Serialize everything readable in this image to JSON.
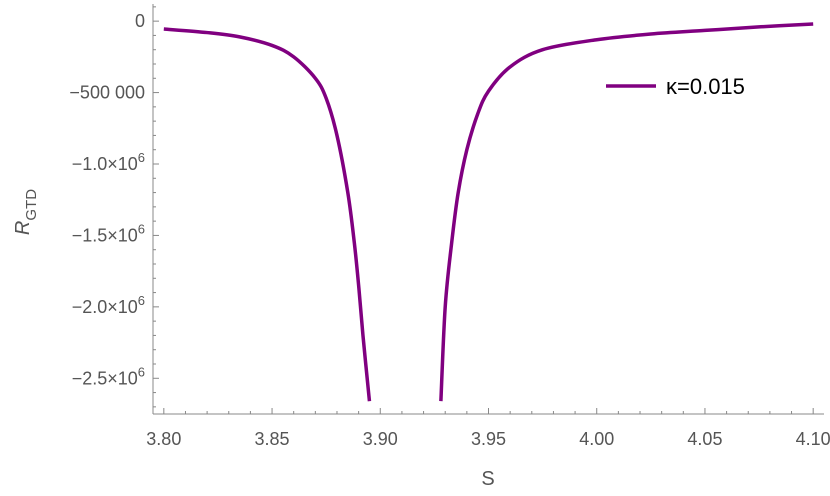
{
  "chart_data": {
    "type": "line",
    "title": "",
    "xlabel": "S",
    "ylabel": "R",
    "ylabel_sub": "GTD",
    "xlim": [
      3.795,
      4.105
    ],
    "ylim": [
      -2750000.0,
      120000
    ],
    "x_ticks": [
      {
        "value": 3.8,
        "label": "3.80"
      },
      {
        "value": 3.85,
        "label": "3.85"
      },
      {
        "value": 3.9,
        "label": "3.90"
      },
      {
        "value": 3.95,
        "label": "3.95"
      },
      {
        "value": 4.0,
        "label": "4.00"
      },
      {
        "value": 4.05,
        "label": "4.05"
      },
      {
        "value": 4.1,
        "label": "4.10"
      }
    ],
    "y_ticks": [
      {
        "value": 0,
        "label": "0",
        "exp": ""
      },
      {
        "value": -500000,
        "label": "−500 000",
        "exp": ""
      },
      {
        "value": -1000000,
        "label": "−1.0×10",
        "exp": "6"
      },
      {
        "value": -1500000,
        "label": "−1.5×10",
        "exp": "6"
      },
      {
        "value": -2000000,
        "label": "−2.0×10",
        "exp": "6"
      },
      {
        "value": -2500000,
        "label": "−2.5×10",
        "exp": "6"
      }
    ],
    "legend_position": "top-right",
    "series": [
      {
        "name": "κ=0.015",
        "color": "#800080",
        "segments": [
          [
            [
              3.8,
              -55000
            ],
            [
              3.82,
              -80000
            ],
            [
              3.835,
              -110000
            ],
            [
              3.85,
              -170000
            ],
            [
              3.86,
              -250000
            ],
            [
              3.87,
              -400000
            ],
            [
              3.875,
              -540000
            ],
            [
              3.88,
              -800000
            ],
            [
              3.885,
              -1200000
            ],
            [
              3.888,
              -1550000
            ],
            [
              3.89,
              -1850000
            ],
            [
              3.892,
              -2200000
            ],
            [
              3.895,
              -2660000
            ]
          ],
          [
            [
              3.928,
              -2660000
            ],
            [
              3.93,
              -2000000
            ],
            [
              3.933,
              -1550000
            ],
            [
              3.936,
              -1200000
            ],
            [
              3.94,
              -900000
            ],
            [
              3.945,
              -650000
            ],
            [
              3.95,
              -490000
            ],
            [
              3.96,
              -320000
            ],
            [
              3.975,
              -200000
            ],
            [
              4.0,
              -130000
            ],
            [
              4.025,
              -90000
            ],
            [
              4.05,
              -65000
            ],
            [
              4.075,
              -40000
            ],
            [
              4.1,
              -20000
            ]
          ]
        ]
      }
    ]
  }
}
